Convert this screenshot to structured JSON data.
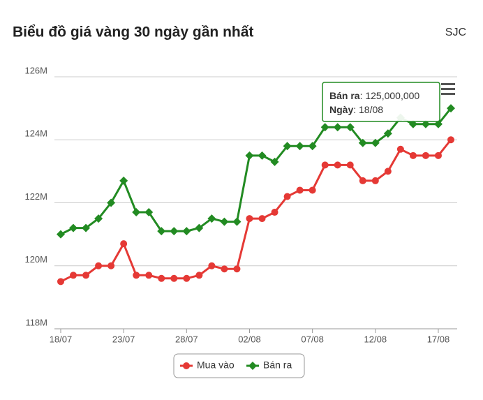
{
  "chart_data": {
    "type": "line",
    "title": "Biểu đồ giá vàng 30 ngày gần nhất",
    "source": "SJC",
    "categories": [
      "18/07",
      null,
      null,
      null,
      null,
      "23/07",
      null,
      null,
      null,
      null,
      "28/07",
      null,
      null,
      null,
      null,
      "02/08",
      null,
      null,
      null,
      null,
      "07/08",
      null,
      null,
      null,
      null,
      "12/08",
      null,
      null,
      null,
      null,
      "17/08",
      null
    ],
    "series": [
      {
        "name": "Mua vào",
        "color": "#e53935",
        "marker": "circle",
        "values": [
          119500000,
          119700000,
          119700000,
          120000000,
          120000000,
          120700000,
          119700000,
          119700000,
          119600000,
          119600000,
          119600000,
          119700000,
          120000000,
          119900000,
          119900000,
          121500000,
          121500000,
          121700000,
          122200000,
          122400000,
          122400000,
          123200000,
          123200000,
          123200000,
          122700000,
          122700000,
          123000000,
          123700000,
          123500000,
          123500000,
          123500000,
          124000000
        ]
      },
      {
        "name": "Bán ra",
        "color": "#228b22",
        "marker": "diamond",
        "values": [
          121000000,
          121200000,
          121200000,
          121500000,
          122000000,
          122700000,
          121700000,
          121700000,
          121100000,
          121100000,
          121100000,
          121200000,
          121500000,
          121400000,
          121400000,
          123500000,
          123500000,
          123300000,
          123800000,
          123800000,
          123800000,
          124400000,
          124400000,
          124400000,
          123900000,
          123900000,
          124200000,
          124700000,
          124500000,
          124500000,
          124500000,
          125000000
        ]
      }
    ],
    "ylim": [
      118000000,
      126000000
    ],
    "yticks": [
      {
        "value": 118000000,
        "label": "118M"
      },
      {
        "value": 120000000,
        "label": "120M"
      },
      {
        "value": 122000000,
        "label": "122M"
      },
      {
        "value": 124000000,
        "label": "124M"
      },
      {
        "value": 126000000,
        "label": "126M"
      }
    ],
    "grid": true,
    "legend": "bottom",
    "tooltip": {
      "series_label": "Bán ra",
      "value_label": "125,000,000",
      "date_label": "Ngày",
      "date": "18/08"
    }
  }
}
